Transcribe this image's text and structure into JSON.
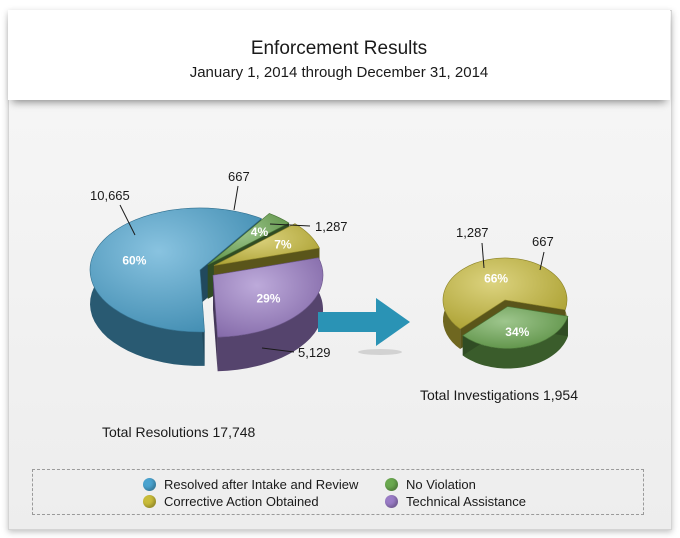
{
  "header": {
    "title": "Enforcement Results",
    "subtitle": "January 1, 2014 through December 31, 2014"
  },
  "colors": {
    "resolved": "#4aa3cf",
    "no_violation": "#6aa84f",
    "corrective": "#c9bc3a",
    "technical": "#9a7cc6",
    "arrow": "#2a93b5"
  },
  "legend": [
    {
      "label": "Resolved after Intake and Review",
      "color_key": "resolved"
    },
    {
      "label": "No Violation",
      "color_key": "no_violation"
    },
    {
      "label": "Corrective Action Obtained",
      "color_key": "corrective"
    },
    {
      "label": "Technical Assistance",
      "color_key": "technical"
    }
  ],
  "chart_data": [
    {
      "type": "pie",
      "title": "Total Resolutions 17,748",
      "series": [
        {
          "name": "Resolved after Intake and Review",
          "value": 10665,
          "value_label": "10,665",
          "percent": "60%",
          "color_key": "resolved"
        },
        {
          "name": "No Violation",
          "value": 667,
          "value_label": "667",
          "percent": "4%",
          "color_key": "no_violation"
        },
        {
          "name": "Corrective Action Obtained",
          "value": 1287,
          "value_label": "1,287",
          "percent": "7%",
          "color_key": "corrective"
        },
        {
          "name": "Technical Assistance",
          "value": 5129,
          "value_label": "5,129",
          "percent": "29%",
          "color_key": "technical"
        }
      ]
    },
    {
      "type": "pie",
      "title": "Total Investigations 1,954",
      "series": [
        {
          "name": "Corrective Action Obtained",
          "value": 1287,
          "value_label": "1,287",
          "percent": "66%",
          "color_key": "corrective"
        },
        {
          "name": "No Violation",
          "value": 667,
          "value_label": "667",
          "percent": "34%",
          "color_key": "no_violation"
        }
      ]
    }
  ]
}
